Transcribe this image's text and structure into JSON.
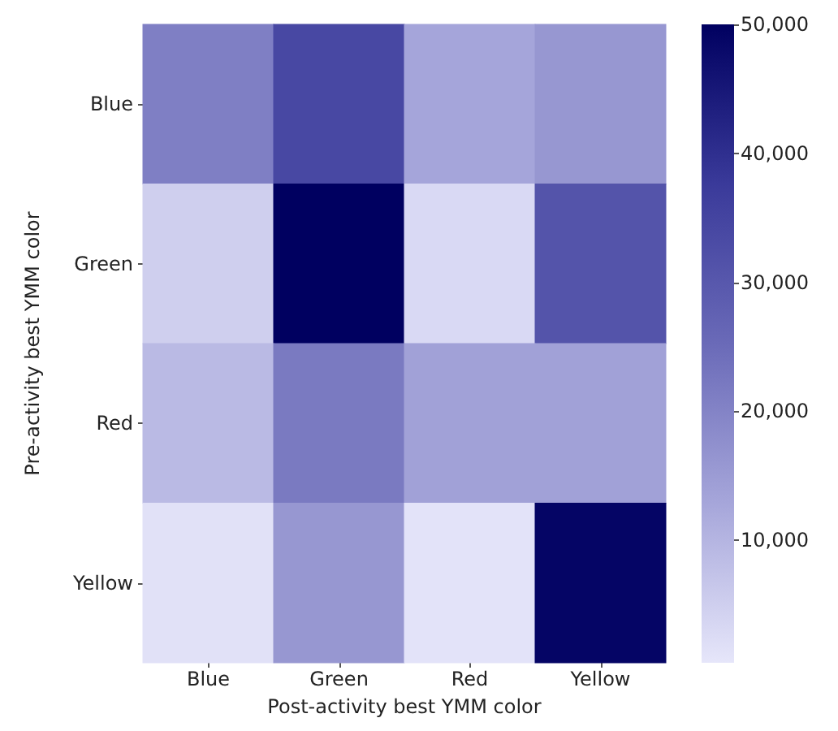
{
  "chart_data": {
    "type": "heatmap",
    "xlabel": "Post-activity best YMM color",
    "ylabel": "Pre-activity best YMM color",
    "categories": [
      "Blue",
      "Green",
      "Red",
      "Yellow"
    ],
    "y_categories": [
      "Blue",
      "Green",
      "Red",
      "Yellow"
    ],
    "cells": [
      [
        21000,
        34000,
        13000,
        16000
      ],
      [
        5000,
        50000,
        3000,
        31000
      ],
      [
        9000,
        22000,
        14000,
        14000
      ],
      [
        1500,
        16000,
        1000,
        49000
      ]
    ],
    "clim": [
      500,
      50000
    ],
    "cticks": [
      {
        "value": 10000,
        "label": "10,000"
      },
      {
        "value": 20000,
        "label": "20,000"
      },
      {
        "value": 30000,
        "label": "30,000"
      },
      {
        "value": 40000,
        "label": "40,000"
      },
      {
        "value": 50000,
        "label": "50,000"
      }
    ]
  }
}
